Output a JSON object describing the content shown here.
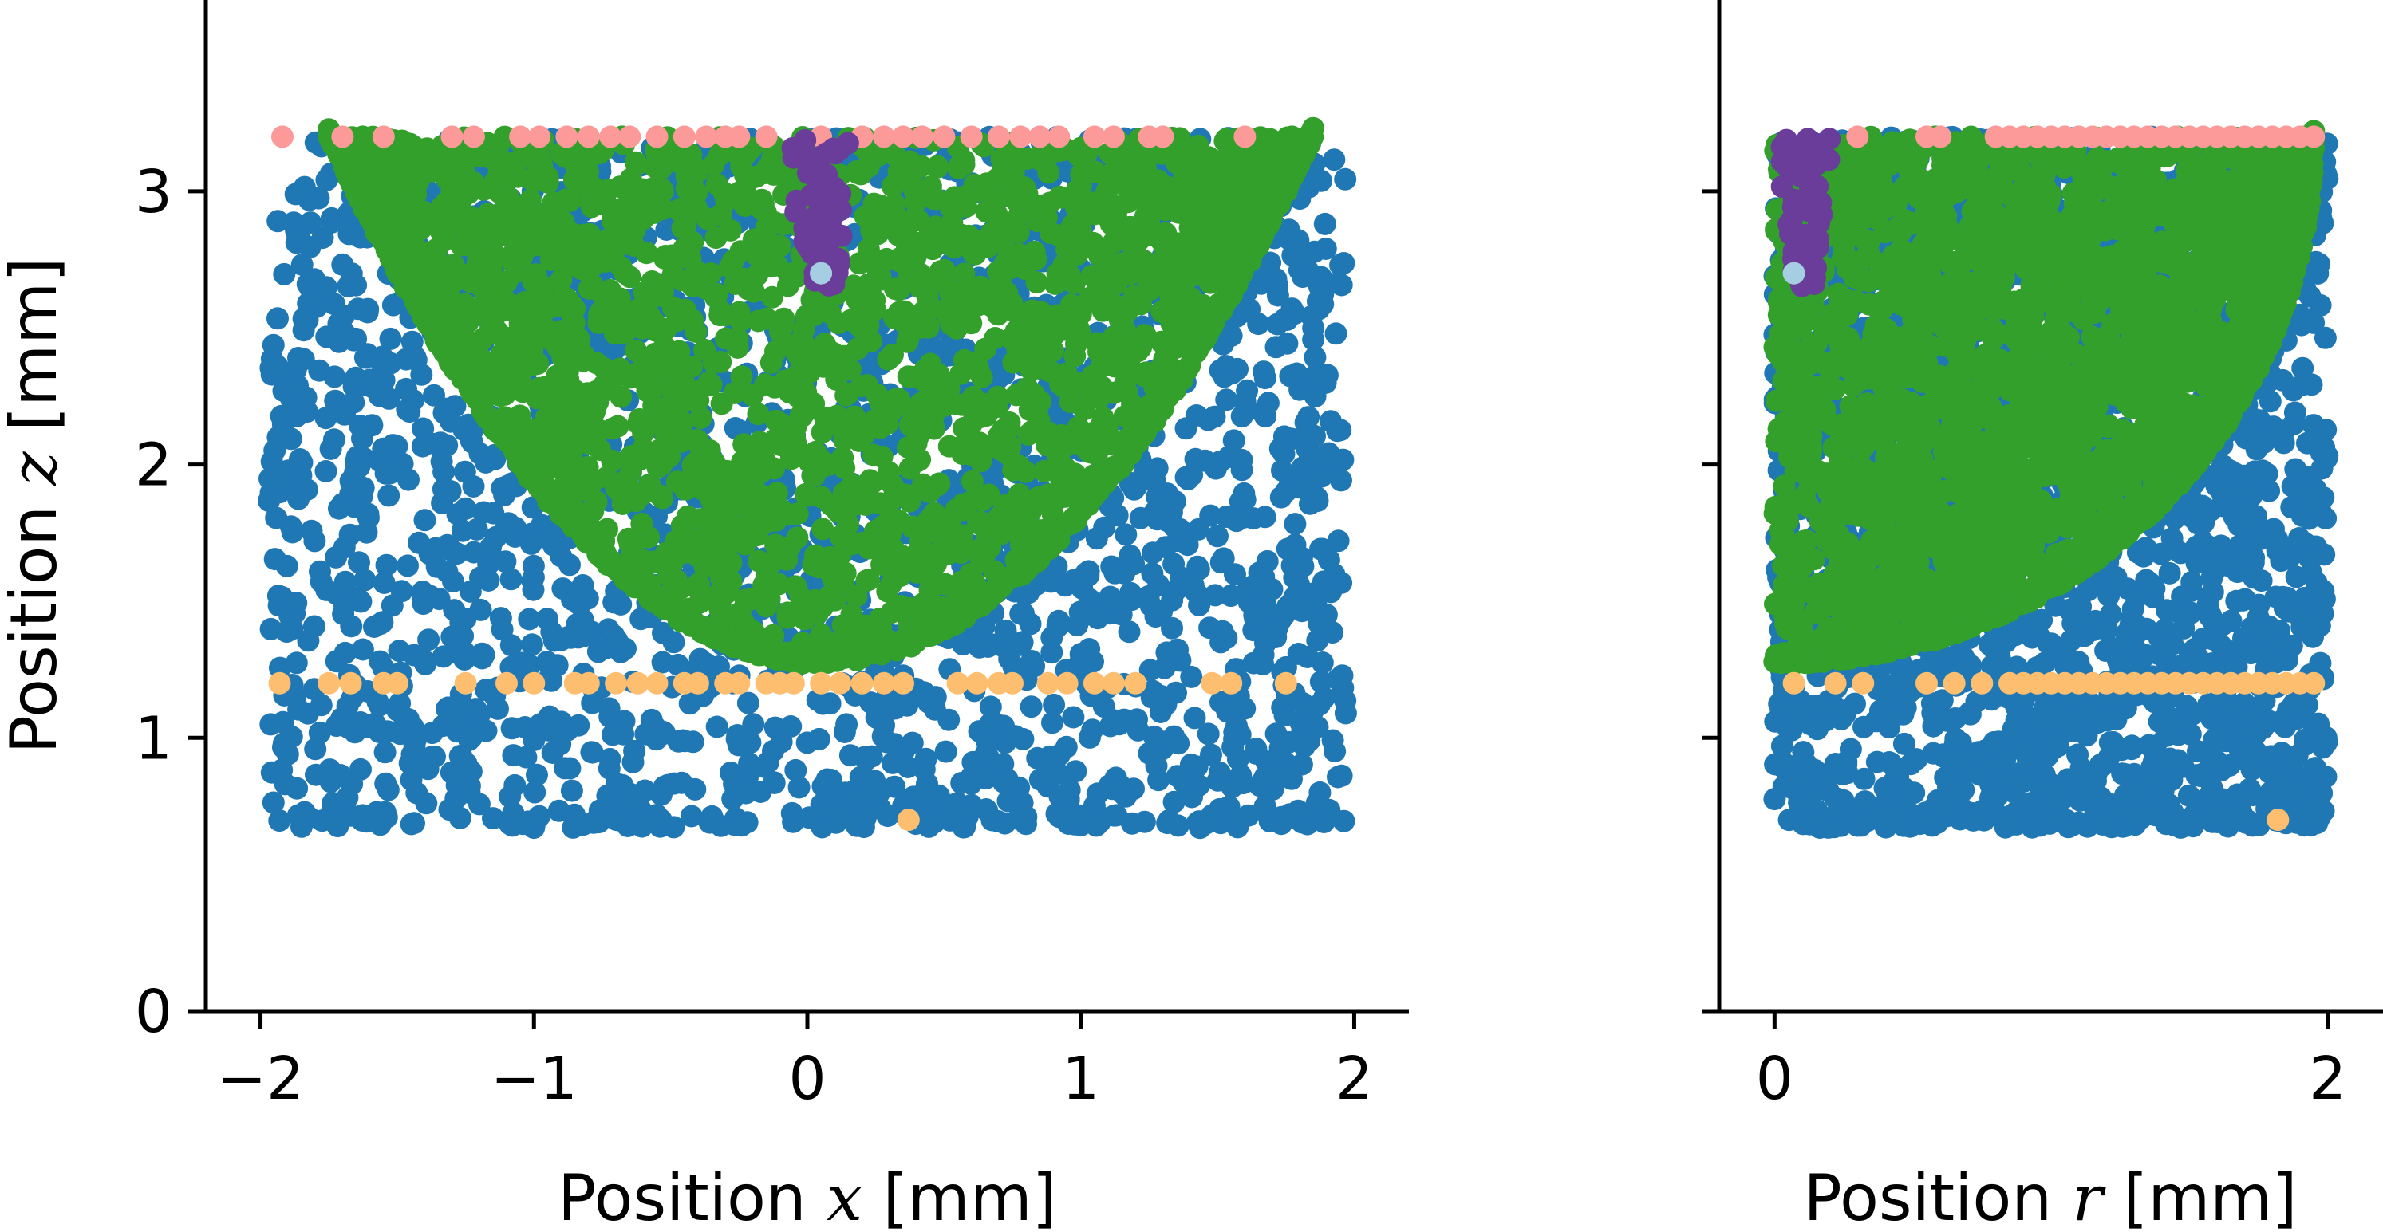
{
  "colors": {
    "blue": "#1f77b4",
    "green": "#33a02c",
    "pink": "#fb9a99",
    "orange": "#fdbf6f",
    "purple": "#6a3d9a",
    "lightblue": "#a6cee3"
  },
  "chart_data": [
    {
      "type": "scatter",
      "title": "",
      "xlabel_prefix": "Position ",
      "xlabel_var": "x",
      "xlabel_suffix": " [mm]",
      "ylabel_prefix": "Position ",
      "ylabel_var": "z",
      "ylabel_suffix": " [mm]",
      "xlim": [
        -2.2,
        2.2
      ],
      "ylim": [
        0,
        3.7
      ],
      "xticks": [
        -2,
        -1,
        0,
        1,
        2
      ],
      "xtick_labels": [
        "−2",
        "−1",
        "0",
        "1",
        "2"
      ],
      "yticks": [
        0,
        1,
        2,
        3
      ],
      "ytick_labels": [
        "0",
        "1",
        "2",
        "3"
      ],
      "grid": false,
      "series": [
        {
          "color_key": "blue",
          "region": {
            "shape": "box",
            "x": [
              -1.97,
              1.97
            ],
            "z": [
              0.72,
              3.2
            ]
          }
        },
        {
          "color_key": "green",
          "region": {
            "shape": "bowl",
            "x": [
              -1.75,
              1.85
            ],
            "z_bottom": 1.27,
            "z_top": 3.2
          }
        },
        {
          "color_key": "pink",
          "points": [
            [
              -1.92,
              3.2
            ],
            [
              -1.7,
              3.2
            ],
            [
              -1.55,
              3.2
            ],
            [
              -1.3,
              3.2
            ],
            [
              -1.22,
              3.2
            ],
            [
              -1.05,
              3.2
            ],
            [
              -0.98,
              3.2
            ],
            [
              -0.88,
              3.2
            ],
            [
              -0.8,
              3.2
            ],
            [
              -0.72,
              3.2
            ],
            [
              -0.65,
              3.2
            ],
            [
              -0.55,
              3.2
            ],
            [
              -0.45,
              3.2
            ],
            [
              -0.37,
              3.2
            ],
            [
              -0.3,
              3.2
            ],
            [
              -0.25,
              3.2
            ],
            [
              -0.15,
              3.2
            ],
            [
              0.05,
              3.2
            ],
            [
              0.2,
              3.2
            ],
            [
              0.28,
              3.2
            ],
            [
              0.35,
              3.2
            ],
            [
              0.42,
              3.2
            ],
            [
              0.5,
              3.2
            ],
            [
              0.6,
              3.2
            ],
            [
              0.7,
              3.2
            ],
            [
              0.78,
              3.2
            ],
            [
              0.85,
              3.2
            ],
            [
              0.92,
              3.2
            ],
            [
              1.05,
              3.2
            ],
            [
              1.12,
              3.2
            ],
            [
              1.25,
              3.2
            ],
            [
              1.3,
              3.2
            ],
            [
              1.6,
              3.2
            ]
          ]
        },
        {
          "color_key": "orange",
          "points": [
            [
              -1.93,
              1.2
            ],
            [
              -1.75,
              1.2
            ],
            [
              -1.67,
              1.2
            ],
            [
              -1.55,
              1.2
            ],
            [
              -1.5,
              1.2
            ],
            [
              -1.25,
              1.2
            ],
            [
              -1.1,
              1.2
            ],
            [
              -1.0,
              1.2
            ],
            [
              -0.85,
              1.2
            ],
            [
              -0.8,
              1.2
            ],
            [
              -0.7,
              1.2
            ],
            [
              -0.62,
              1.2
            ],
            [
              -0.55,
              1.2
            ],
            [
              -0.45,
              1.2
            ],
            [
              -0.4,
              1.2
            ],
            [
              -0.3,
              1.2
            ],
            [
              -0.25,
              1.2
            ],
            [
              -0.15,
              1.2
            ],
            [
              -0.1,
              1.2
            ],
            [
              -0.05,
              1.2
            ],
            [
              0.05,
              1.2
            ],
            [
              0.12,
              1.2
            ],
            [
              0.2,
              1.2
            ],
            [
              0.28,
              1.2
            ],
            [
              0.35,
              1.2
            ],
            [
              0.55,
              1.2
            ],
            [
              0.62,
              1.2
            ],
            [
              0.7,
              1.2
            ],
            [
              0.75,
              1.2
            ],
            [
              0.88,
              1.2
            ],
            [
              0.95,
              1.2
            ],
            [
              1.05,
              1.2
            ],
            [
              1.12,
              1.2
            ],
            [
              1.2,
              1.2
            ],
            [
              1.48,
              1.2
            ],
            [
              1.55,
              1.2
            ],
            [
              1.75,
              1.2
            ],
            [
              0.37,
              0.7
            ]
          ]
        },
        {
          "color_key": "purple",
          "region": {
            "shape": "column",
            "x": [
              -0.1,
              0.2
            ],
            "z": [
              2.65,
              3.2
            ]
          }
        },
        {
          "color_key": "lightblue",
          "points": [
            [
              0.05,
              2.7
            ]
          ]
        }
      ]
    },
    {
      "type": "scatter",
      "title": "",
      "xlabel_prefix": "Position ",
      "xlabel_var": "r",
      "xlabel_suffix": " [mm]",
      "ylabel_prefix": "",
      "ylabel_var": "",
      "ylabel_suffix": "",
      "xlim": [
        -0.2,
        2.2
      ],
      "ylim": [
        0,
        3.7
      ],
      "xticks": [
        0,
        2
      ],
      "xtick_labels": [
        "0",
        "2"
      ],
      "yticks": [
        0,
        1,
        2,
        3
      ],
      "ytick_labels": [
        "",
        "",
        "",
        ""
      ],
      "grid": false,
      "series": [
        {
          "color_key": "blue",
          "region": {
            "shape": "box",
            "x": [
              0.0,
              2.0
            ],
            "z": [
              0.72,
              3.2
            ]
          }
        },
        {
          "color_key": "green",
          "region": {
            "shape": "arc",
            "x": [
              0.0,
              1.95
            ],
            "z_bottom": 1.27,
            "z_top": 3.2
          }
        },
        {
          "color_key": "pink",
          "points": [
            [
              0.3,
              3.2
            ],
            [
              0.55,
              3.2
            ],
            [
              0.6,
              3.2
            ],
            [
              0.8,
              3.2
            ],
            [
              0.85,
              3.2
            ],
            [
              0.9,
              3.2
            ],
            [
              0.95,
              3.2
            ],
            [
              1.0,
              3.2
            ],
            [
              1.05,
              3.2
            ],
            [
              1.1,
              3.2
            ],
            [
              1.15,
              3.2
            ],
            [
              1.2,
              3.2
            ],
            [
              1.25,
              3.2
            ],
            [
              1.3,
              3.2
            ],
            [
              1.35,
              3.2
            ],
            [
              1.4,
              3.2
            ],
            [
              1.45,
              3.2
            ],
            [
              1.5,
              3.2
            ],
            [
              1.55,
              3.2
            ],
            [
              1.6,
              3.2
            ],
            [
              1.65,
              3.2
            ],
            [
              1.7,
              3.2
            ],
            [
              1.75,
              3.2
            ],
            [
              1.8,
              3.2
            ],
            [
              1.85,
              3.2
            ],
            [
              1.9,
              3.2
            ],
            [
              1.95,
              3.2
            ]
          ]
        },
        {
          "color_key": "orange",
          "points": [
            [
              0.07,
              1.2
            ],
            [
              0.22,
              1.2
            ],
            [
              0.32,
              1.2
            ],
            [
              0.55,
              1.2
            ],
            [
              0.65,
              1.2
            ],
            [
              0.75,
              1.2
            ],
            [
              0.85,
              1.2
            ],
            [
              0.9,
              1.2
            ],
            [
              0.95,
              1.2
            ],
            [
              1.0,
              1.2
            ],
            [
              1.05,
              1.2
            ],
            [
              1.1,
              1.2
            ],
            [
              1.15,
              1.2
            ],
            [
              1.2,
              1.2
            ],
            [
              1.25,
              1.2
            ],
            [
              1.3,
              1.2
            ],
            [
              1.35,
              1.2
            ],
            [
              1.4,
              1.2
            ],
            [
              1.45,
              1.2
            ],
            [
              1.5,
              1.2
            ],
            [
              1.55,
              1.2
            ],
            [
              1.6,
              1.2
            ],
            [
              1.65,
              1.2
            ],
            [
              1.7,
              1.2
            ],
            [
              1.75,
              1.2
            ],
            [
              1.8,
              1.2
            ],
            [
              1.85,
              1.2
            ],
            [
              1.9,
              1.2
            ],
            [
              1.95,
              1.2
            ],
            [
              1.82,
              0.7
            ]
          ]
        },
        {
          "color_key": "purple",
          "region": {
            "shape": "column",
            "x": [
              0.0,
              0.22
            ],
            "z": [
              2.65,
              3.2
            ]
          }
        },
        {
          "color_key": "lightblue",
          "points": [
            [
              0.07,
              2.7
            ]
          ]
        }
      ]
    }
  ]
}
